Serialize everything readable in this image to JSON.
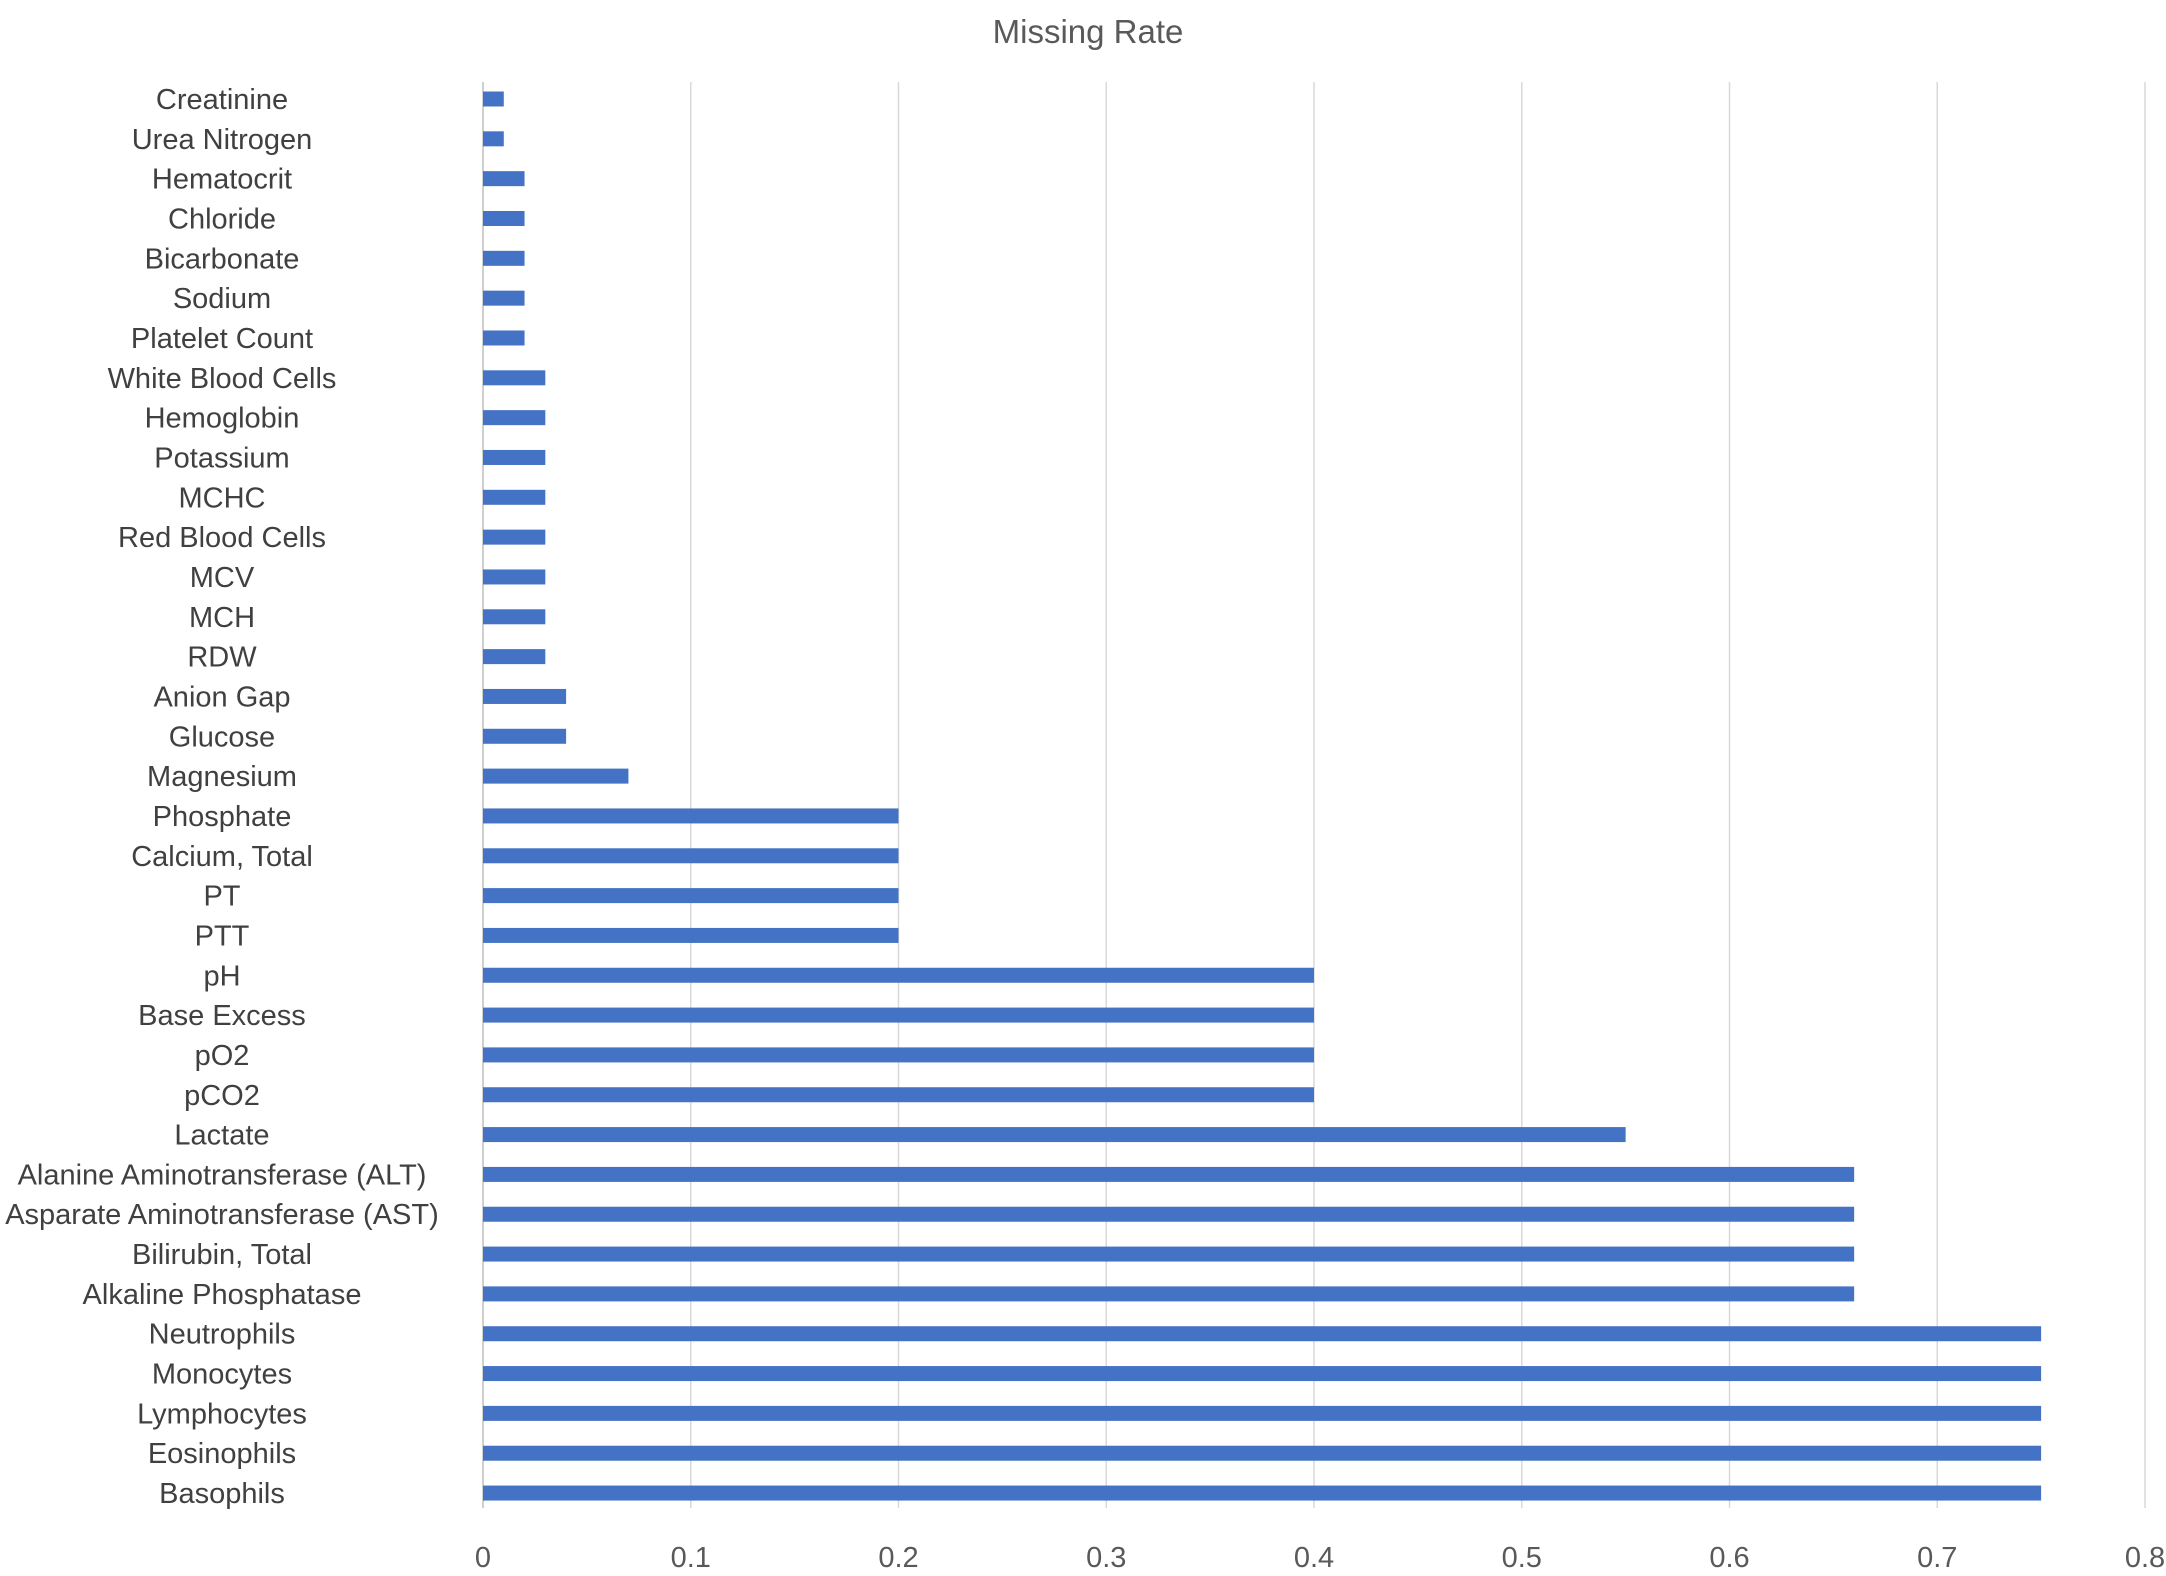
{
  "chart_data": {
    "type": "bar",
    "orientation": "horizontal",
    "title": "Missing Rate",
    "xlabel": "",
    "ylabel": "",
    "xlim": [
      0,
      0.8
    ],
    "x_ticks": [
      0,
      0.1,
      0.2,
      0.3,
      0.4,
      0.5,
      0.6,
      0.7,
      0.8
    ],
    "x_tick_labels": [
      "0",
      "0.1",
      "0.2",
      "0.3",
      "0.4",
      "0.5",
      "0.6",
      "0.7",
      "0.8"
    ],
    "grid": "vertical",
    "legend": "none",
    "bar_color": "#4472C4",
    "categories": [
      "Creatinine",
      "Urea Nitrogen",
      "Hematocrit",
      "Chloride",
      "Bicarbonate",
      "Sodium",
      "Platelet Count",
      "White Blood Cells",
      "Hemoglobin",
      "Potassium",
      "MCHC",
      "Red Blood Cells",
      "MCV",
      "MCH",
      "RDW",
      "Anion Gap",
      "Glucose",
      "Magnesium",
      "Phosphate",
      "Calcium, Total",
      "PT",
      "PTT",
      "pH",
      "Base Excess",
      "pO2",
      "pCO2",
      "Lactate",
      "Alanine Aminotransferase (ALT)",
      "Asparate Aminotransferase (AST)",
      "Bilirubin, Total",
      "Alkaline Phosphatase",
      "Neutrophils",
      "Monocytes",
      "Lymphocytes",
      "Eosinophils",
      "Basophils"
    ],
    "values": [
      0.01,
      0.01,
      0.02,
      0.02,
      0.02,
      0.02,
      0.02,
      0.03,
      0.03,
      0.03,
      0.03,
      0.03,
      0.03,
      0.03,
      0.03,
      0.04,
      0.04,
      0.07,
      0.2,
      0.2,
      0.2,
      0.2,
      0.4,
      0.4,
      0.4,
      0.4,
      0.55,
      0.66,
      0.66,
      0.66,
      0.66,
      0.75,
      0.75,
      0.75,
      0.75,
      0.75
    ]
  }
}
